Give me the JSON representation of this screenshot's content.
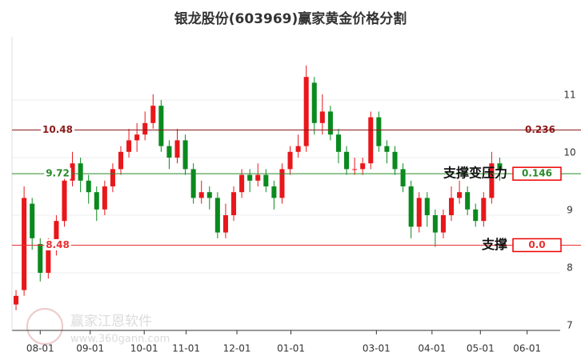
{
  "chart_data": {
    "type": "candlestick",
    "title": "银龙股份(603969)赢家黄金价格分割",
    "up_color": "#e8171b",
    "down_color": "#0a8a1e",
    "open": [
      7.45,
      7.7,
      9.2,
      8.5,
      8.0,
      8.4,
      8.9,
      9.6,
      9.9,
      9.6,
      9.4,
      9.1,
      9.5,
      9.8,
      10.1,
      10.3,
      10.4,
      10.6,
      10.9,
      10.2,
      10.0,
      10.3,
      9.8,
      9.3,
      9.4,
      9.3,
      8.7,
      9.0,
      9.4,
      9.7,
      9.6,
      9.7,
      9.5,
      9.3,
      9.8,
      10.1,
      10.2,
      11.3,
      10.6,
      10.8,
      10.4,
      10.1,
      9.8,
      9.8,
      9.9,
      10.7,
      10.2,
      10.1,
      9.8,
      9.5,
      8.8,
      9.3,
      9.0,
      8.7,
      9.0,
      9.3,
      9.4,
      9.1,
      8.9,
      9.3,
      9.9
    ],
    "high": [
      7.7,
      9.5,
      9.3,
      8.6,
      8.6,
      9.0,
      9.8,
      10.1,
      10.0,
      9.7,
      9.5,
      9.6,
      9.9,
      10.2,
      10.5,
      10.6,
      10.8,
      11.1,
      11.0,
      10.3,
      10.5,
      10.4,
      9.9,
      9.6,
      9.5,
      9.4,
      9.2,
      9.5,
      9.8,
      9.8,
      9.9,
      9.8,
      9.6,
      9.9,
      10.2,
      10.4,
      11.6,
      11.4,
      11.1,
      10.9,
      10.5,
      10.2,
      10.0,
      10.0,
      10.8,
      10.8,
      10.3,
      10.2,
      9.9,
      9.6,
      9.4,
      9.4,
      9.1,
      9.1,
      9.5,
      9.6,
      9.5,
      9.2,
      9.4,
      10.1,
      10.0
    ],
    "low": [
      7.35,
      7.6,
      8.4,
      7.85,
      7.9,
      8.3,
      8.8,
      9.5,
      9.4,
      9.2,
      8.9,
      9.0,
      9.4,
      9.7,
      10.0,
      10.1,
      10.3,
      10.5,
      10.1,
      9.8,
      9.9,
      9.7,
      9.2,
      9.2,
      9.1,
      8.6,
      8.6,
      8.9,
      9.3,
      9.4,
      9.5,
      9.4,
      9.1,
      9.2,
      9.7,
      10.0,
      10.1,
      10.4,
      10.4,
      10.3,
      9.9,
      9.7,
      9.7,
      9.7,
      9.8,
      10.1,
      9.9,
      9.7,
      9.4,
      8.6,
      8.7,
      8.8,
      8.45,
      8.6,
      8.9,
      9.2,
      9.0,
      8.8,
      8.8,
      9.2,
      9.6
    ],
    "close": [
      7.6,
      9.3,
      8.6,
      8.0,
      8.4,
      8.9,
      9.6,
      9.9,
      9.6,
      9.4,
      9.1,
      9.5,
      9.8,
      10.1,
      10.3,
      10.4,
      10.6,
      10.9,
      10.2,
      10.0,
      10.3,
      9.8,
      9.3,
      9.4,
      9.3,
      8.7,
      9.0,
      9.4,
      9.7,
      9.6,
      9.7,
      9.5,
      9.3,
      9.8,
      10.1,
      10.2,
      11.4,
      10.6,
      10.8,
      10.4,
      10.1,
      9.8,
      9.8,
      9.9,
      10.7,
      10.2,
      10.1,
      9.8,
      9.5,
      8.8,
      9.3,
      9.0,
      8.7,
      9.0,
      9.3,
      9.4,
      9.1,
      8.9,
      9.3,
      9.9,
      9.8
    ],
    "xlim": [
      0,
      68
    ],
    "xticks": [
      {
        "value": 3.5,
        "label": "08-01"
      },
      {
        "value": 9.7,
        "label": "09-01"
      },
      {
        "value": 16.4,
        "label": "10-01"
      },
      {
        "value": 21.6,
        "label": "11-01"
      },
      {
        "value": 27.9,
        "label": "12-01"
      },
      {
        "value": 34.6,
        "label": "01-01"
      },
      {
        "value": 45.2,
        "label": "03-01"
      },
      {
        "value": 52.1,
        "label": "04-01"
      },
      {
        "value": 58.1,
        "label": "05-01"
      },
      {
        "value": 63.9,
        "label": "06-01"
      }
    ],
    "ylim": [
      7,
      12.1
    ],
    "yticks": [
      7,
      8,
      9,
      10,
      11
    ],
    "grid": true,
    "levels": [
      {
        "value": 10.48,
        "ratio": 0.236,
        "color": "#8b1a1a",
        "boxed": false
      },
      {
        "value": 9.72,
        "ratio": 0.146,
        "color": "#2a8a2a",
        "boxed": true,
        "note": "支撑变压力"
      },
      {
        "value": 8.48,
        "ratio": {
          "value": 0,
          "label": "0.0"
        },
        "color": "#e83030",
        "boxed": true,
        "note": "支撑"
      }
    ],
    "watermark": "赢家江恩软件",
    "watermark_url": "www.360gann.com"
  }
}
